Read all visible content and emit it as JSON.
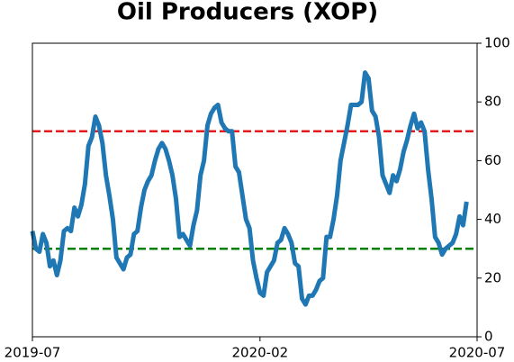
{
  "chart_data": {
    "type": "line",
    "title": "Oil Producers (XOP)",
    "series": [
      {
        "color": "#1f77b4",
        "values": [
          36,
          30,
          29,
          35,
          32,
          24,
          26,
          21,
          26,
          36,
          37,
          36,
          44,
          41,
          45,
          52,
          65,
          68,
          75,
          72,
          66,
          55,
          48,
          40,
          27,
          25,
          23,
          27,
          28,
          35,
          36,
          44,
          50,
          53,
          55,
          60,
          64,
          66,
          64,
          60,
          55,
          47,
          34,
          35,
          33,
          31,
          38,
          43,
          55,
          60,
          72,
          76,
          78,
          79,
          73,
          71,
          70,
          70,
          58,
          56,
          48,
          40,
          37,
          26,
          20,
          15,
          14,
          22,
          24,
          26,
          32,
          33,
          37,
          35,
          32,
          25,
          24,
          13,
          11,
          14,
          14,
          16,
          19,
          20,
          34,
          34,
          40,
          48,
          60,
          66,
          72,
          79,
          79,
          79,
          80,
          90,
          88,
          77,
          75,
          68,
          55,
          52,
          49,
          55,
          53,
          57,
          63,
          67,
          72,
          76,
          71,
          73,
          70,
          57,
          47,
          34,
          32,
          28,
          30,
          31,
          32,
          35,
          41,
          38,
          46
        ]
      }
    ],
    "xlim": [
      0,
      127
    ],
    "xticks": [
      {
        "value": 0,
        "label": "2019-07"
      },
      {
        "value": 65,
        "label": "2020-02"
      },
      {
        "value": 127,
        "label": "2020-07"
      }
    ],
    "ylim": [
      0,
      100
    ],
    "yticks": [
      0,
      20,
      40,
      60,
      80,
      100
    ],
    "y_axis_side": "right",
    "reference_lines": [
      {
        "value": 70,
        "color": "#e41a1c"
      },
      {
        "value": 30,
        "color": "#008000"
      }
    ]
  }
}
